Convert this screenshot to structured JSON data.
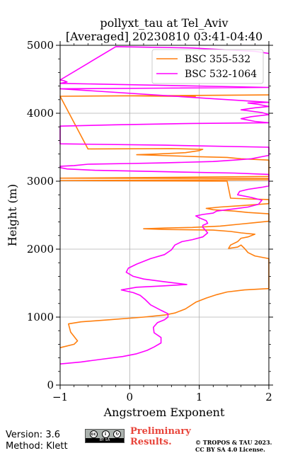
{
  "chart_data": {
    "type": "line",
    "title": "pollyxt_tau at Tel_Aviv",
    "subtitle": "[Averaged] 20230810 03:41-04:40",
    "xlabel": "Angstroem Exponent",
    "ylabel": "Height (m)",
    "xlim": [
      -1,
      2
    ],
    "ylim": [
      0,
      5000
    ],
    "xticks": [
      -1,
      0,
      1,
      2
    ],
    "yticks": [
      0,
      1000,
      2000,
      3000,
      4000,
      5000
    ],
    "xtick_labels": [
      "−1",
      "0",
      "1",
      "2"
    ],
    "ytick_labels": [
      "0",
      "1000",
      "2000",
      "3000",
      "4000",
      "5000"
    ],
    "grid": true,
    "legend_position": "top-right",
    "series": [
      {
        "name": "BSC 355-532",
        "color": "#ff7f0e",
        "points": [
          [
            -1.0,
            550
          ],
          [
            -0.8,
            600
          ],
          [
            -0.75,
            650
          ],
          [
            -0.85,
            780
          ],
          [
            -0.88,
            900
          ],
          [
            -0.7,
            930
          ],
          [
            -0.3,
            960
          ],
          [
            0.2,
            1000
          ],
          [
            0.5,
            1030
          ],
          [
            0.65,
            1060
          ],
          [
            0.8,
            1120
          ],
          [
            0.95,
            1220
          ],
          [
            1.1,
            1280
          ],
          [
            1.25,
            1330
          ],
          [
            1.4,
            1370
          ],
          [
            1.65,
            1400
          ],
          [
            2.0,
            1420
          ],
          [
            2.0,
            1860
          ],
          [
            1.8,
            1900
          ],
          [
            1.7,
            1950
          ],
          [
            1.65,
            2010
          ],
          [
            1.6,
            2060
          ],
          [
            1.55,
            2030
          ],
          [
            1.42,
            2010
          ],
          [
            1.45,
            2060
          ],
          [
            1.55,
            2110
          ],
          [
            1.6,
            2160
          ],
          [
            1.7,
            2180
          ],
          [
            1.8,
            2220
          ],
          [
            1.6,
            2240
          ],
          [
            1.45,
            2260
          ],
          [
            1.2,
            2280
          ],
          [
            0.5,
            2290
          ],
          [
            0.2,
            2300
          ],
          [
            0.5,
            2310
          ],
          [
            0.9,
            2320
          ],
          [
            1.3,
            2340
          ],
          [
            1.6,
            2370
          ],
          [
            1.8,
            2390
          ],
          [
            2.0,
            2410
          ],
          [
            2.0,
            2520
          ],
          [
            1.7,
            2540
          ],
          [
            1.5,
            2560
          ],
          [
            1.2,
            2580
          ],
          [
            1.1,
            2600
          ],
          [
            1.3,
            2620
          ],
          [
            1.6,
            2640
          ],
          [
            2.0,
            2670
          ],
          [
            2.0,
            2730
          ],
          [
            1.7,
            2740
          ],
          [
            1.45,
            2750
          ],
          [
            1.4,
            3000
          ],
          [
            -1.0,
            3010
          ],
          [
            2.0,
            3020
          ],
          [
            2.0,
            3040
          ],
          [
            -1.0,
            3045
          ],
          [
            1.0,
            3060
          ],
          [
            2.0,
            3070
          ],
          [
            2.0,
            3310
          ],
          [
            1.6,
            3330
          ],
          [
            1.4,
            3350
          ],
          [
            1.0,
            3360
          ],
          [
            0.4,
            3380
          ],
          [
            0.1,
            3390
          ],
          [
            0.4,
            3400
          ],
          [
            0.8,
            3420
          ],
          [
            1.0,
            3450
          ],
          [
            1.05,
            3470
          ],
          [
            0.6,
            3480
          ],
          [
            -0.6,
            3475
          ],
          [
            -1.0,
            4250
          ],
          [
            2.0,
            4270
          ],
          [
            0.05,
            4255
          ],
          [
            0.95,
            4245
          ]
        ]
      },
      {
        "name": "BSC 532-1064",
        "color": "#ff00ff",
        "points": [
          [
            -1.0,
            310
          ],
          [
            -0.7,
            340
          ],
          [
            -0.4,
            380
          ],
          [
            -0.1,
            420
          ],
          [
            0.1,
            460
          ],
          [
            0.25,
            510
          ],
          [
            0.35,
            560
          ],
          [
            0.45,
            620
          ],
          [
            0.45,
            700
          ],
          [
            0.35,
            770
          ],
          [
            0.34,
            850
          ],
          [
            0.4,
            920
          ],
          [
            0.5,
            960
          ],
          [
            0.55,
            1000
          ],
          [
            0.55,
            1050
          ],
          [
            0.45,
            1100
          ],
          [
            0.3,
            1180
          ],
          [
            0.22,
            1260
          ],
          [
            0.15,
            1320
          ],
          [
            0.05,
            1360
          ],
          [
            -0.12,
            1400
          ],
          [
            0.1,
            1440
          ],
          [
            0.5,
            1460
          ],
          [
            0.82,
            1480
          ],
          [
            0.5,
            1520
          ],
          [
            0.2,
            1560
          ],
          [
            0.05,
            1600
          ],
          [
            -0.05,
            1660
          ],
          [
            -0.02,
            1720
          ],
          [
            0.1,
            1780
          ],
          [
            0.3,
            1860
          ],
          [
            0.5,
            1920
          ],
          [
            0.6,
            1990
          ],
          [
            0.65,
            2060
          ],
          [
            0.75,
            2110
          ],
          [
            0.9,
            2140
          ],
          [
            1.05,
            2180
          ],
          [
            1.12,
            2240
          ],
          [
            1.08,
            2290
          ],
          [
            1.05,
            2320
          ],
          [
            1.05,
            2350
          ],
          [
            1.12,
            2380
          ],
          [
            1.1,
            2420
          ],
          [
            1.0,
            2460
          ],
          [
            0.95,
            2490
          ],
          [
            1.05,
            2510
          ],
          [
            1.2,
            2530
          ],
          [
            1.25,
            2560
          ],
          [
            1.4,
            2580
          ],
          [
            1.55,
            2600
          ],
          [
            1.7,
            2620
          ],
          [
            1.85,
            2660
          ],
          [
            1.9,
            2720
          ],
          [
            1.75,
            2760
          ],
          [
            1.55,
            2800
          ],
          [
            1.58,
            2850
          ],
          [
            1.7,
            2880
          ],
          [
            1.9,
            2910
          ],
          [
            2.0,
            2930
          ],
          [
            2.0,
            3100
          ],
          [
            1.5,
            3120
          ],
          [
            0.5,
            3140
          ],
          [
            -0.5,
            3160
          ],
          [
            -0.9,
            3180
          ],
          [
            -1.0,
            3200
          ],
          [
            -1.0,
            3220
          ],
          [
            -0.8,
            3230
          ],
          [
            -0.6,
            3250
          ],
          [
            0.0,
            3260
          ],
          [
            0.5,
            3270
          ],
          [
            1.2,
            3290
          ],
          [
            1.5,
            3310
          ],
          [
            1.75,
            3330
          ],
          [
            1.9,
            3360
          ],
          [
            2.0,
            3380
          ],
          [
            2.0,
            3500
          ],
          [
            0.5,
            3530
          ],
          [
            -1.0,
            3550
          ],
          [
            -1.0,
            3810
          ],
          [
            -0.2,
            3830
          ],
          [
            0.9,
            3850
          ],
          [
            2.0,
            3860
          ],
          [
            1.8,
            3880
          ],
          [
            1.6,
            3920
          ],
          [
            1.75,
            3950
          ],
          [
            2.0,
            3980
          ],
          [
            1.9,
            4010
          ],
          [
            1.6,
            4050
          ],
          [
            1.8,
            4080
          ],
          [
            2.0,
            4100
          ],
          [
            1.85,
            4130
          ],
          [
            1.7,
            4150
          ],
          [
            2.0,
            4160
          ],
          [
            -1.0,
            4360
          ],
          [
            0.5,
            4370
          ],
          [
            2.0,
            4380
          ],
          [
            -1.0,
            4440
          ],
          [
            -0.9,
            4460
          ],
          [
            -0.95,
            4480
          ],
          [
            -1.0,
            4490
          ],
          [
            -0.2,
            4980
          ],
          [
            0.9,
            4960
          ],
          [
            1.8,
            4910
          ],
          [
            2.0,
            4880
          ]
        ]
      }
    ]
  },
  "footer": {
    "version_line": "Version: 3.6",
    "method_line": "Method: Klett",
    "license_badge_text": "BY  SA",
    "preliminary_line1": "Preliminary",
    "preliminary_line2": "Results.",
    "copyright_line1": "© TROPOS & TAU 2023.",
    "copyright_line2": "CC BY SA 4.0 License."
  }
}
